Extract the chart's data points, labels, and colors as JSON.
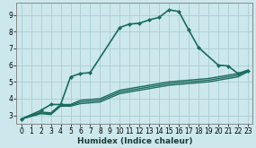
{
  "xlabel": "Humidex (Indice chaleur)",
  "bg_color": "#cce8ec",
  "grid_color": "#aacdd4",
  "line_color": "#1a6b5e",
  "xlim": [
    -0.5,
    23.5
  ],
  "ylim": [
    2.5,
    9.7
  ],
  "xticks": [
    0,
    1,
    2,
    3,
    4,
    5,
    6,
    7,
    8,
    9,
    10,
    11,
    12,
    13,
    14,
    15,
    16,
    17,
    18,
    19,
    20,
    21,
    22,
    23
  ],
  "yticks": [
    3,
    4,
    5,
    6,
    7,
    8,
    9
  ],
  "series": [
    {
      "x": [
        0,
        2,
        3,
        4,
        5,
        6,
        7,
        8,
        10,
        11,
        12,
        13,
        14,
        15,
        16,
        17,
        18,
        19,
        20,
        21,
        22,
        23
      ],
      "y": [
        2.78,
        3.1,
        3.05,
        3.55,
        3.55,
        3.7,
        3.75,
        3.8,
        4.3,
        4.4,
        4.5,
        4.6,
        4.7,
        4.8,
        4.85,
        4.9,
        4.95,
        5.0,
        5.1,
        5.2,
        5.3,
        5.6
      ],
      "marker": false,
      "linewidth": 1.0
    },
    {
      "x": [
        0,
        2,
        3,
        4,
        5,
        6,
        7,
        8,
        10,
        11,
        12,
        13,
        14,
        15,
        16,
        17,
        18,
        19,
        20,
        21,
        22,
        23
      ],
      "y": [
        2.78,
        3.15,
        3.1,
        3.6,
        3.6,
        3.8,
        3.85,
        3.9,
        4.4,
        4.5,
        4.6,
        4.7,
        4.8,
        4.9,
        4.95,
        5.0,
        5.05,
        5.1,
        5.2,
        5.3,
        5.4,
        5.65
      ],
      "marker": false,
      "linewidth": 1.0
    },
    {
      "x": [
        0,
        2,
        3,
        4,
        5,
        6,
        7,
        8,
        10,
        11,
        12,
        13,
        14,
        15,
        16,
        17,
        18,
        19,
        20,
        21,
        22,
        23
      ],
      "y": [
        2.78,
        3.2,
        3.15,
        3.65,
        3.65,
        3.9,
        3.95,
        4.0,
        4.5,
        4.6,
        4.7,
        4.8,
        4.9,
        5.0,
        5.05,
        5.1,
        5.15,
        5.2,
        5.3,
        5.4,
        5.5,
        5.7
      ],
      "marker": false,
      "linewidth": 1.0
    },
    {
      "x": [
        0,
        2,
        3,
        4,
        5,
        6,
        7,
        10,
        11,
        12,
        13,
        14,
        15,
        16,
        17,
        18,
        20,
        21,
        22,
        23
      ],
      "y": [
        2.78,
        3.3,
        3.65,
        3.65,
        5.3,
        5.5,
        5.55,
        8.25,
        8.45,
        8.5,
        8.7,
        8.85,
        9.3,
        9.2,
        8.1,
        7.05,
        6.0,
        5.95,
        5.5,
        5.65
      ],
      "marker": true,
      "linewidth": 1.2
    }
  ]
}
